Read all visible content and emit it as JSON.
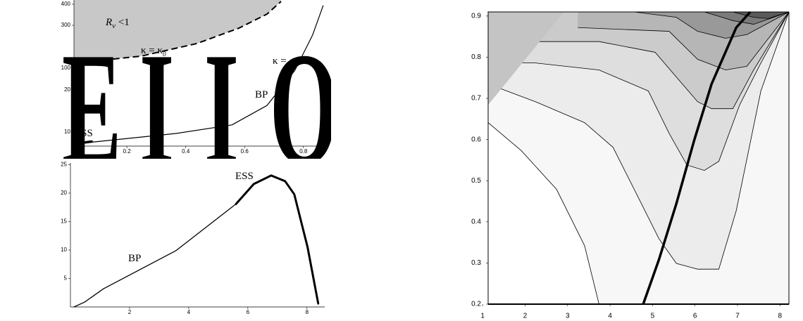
{
  "chart_data": [
    {
      "type": "line",
      "xlim": [
        0.02,
        0.87
      ],
      "ylim": [
        6,
        420
      ],
      "yscale": "piecewise",
      "xticks": [
        0.2,
        0.4,
        0.6,
        0.8
      ],
      "yticks": [
        10,
        20,
        100,
        300,
        400
      ],
      "region": {
        "x": [
          0.02,
          0.248,
          0.438,
          0.581,
          0.676,
          0.724
        ],
        "y": [
          123,
          156,
          215,
          287,
          353,
          413
        ],
        "color": "#c8c8c8",
        "dashed": true
      },
      "series": [
        {
          "color": "#000000",
          "width": 1.2,
          "x": [
            0.02,
            0.367,
            0.557,
            0.676,
            0.771,
            0.831,
            0.867
          ],
          "y": [
            6.6,
            9.6,
            11.7,
            16.3,
            92,
            254,
            393
          ]
        },
        {
          "color": "#000000",
          "width": 3.5,
          "x": [
            0.02,
            0.08
          ],
          "y": [
            6.6,
            7.3
          ]
        }
      ],
      "region_label": [
        "R",
        "v",
        " <1"
      ],
      "curve_label": [
        "κ = κ",
        "0"
      ],
      "cut_label": "κ =",
      "annotations": [
        "BP",
        "ESS"
      ],
      "overlay": [
        "E",
        "I",
        "I",
        "O"
      ]
    },
    {
      "type": "line",
      "xlim": [
        0,
        8.6
      ],
      "ylim": [
        0,
        25.3
      ],
      "xticks": [
        2,
        4,
        6,
        8
      ],
      "yticks": [
        5,
        10,
        15,
        20,
        25
      ],
      "series": [
        {
          "name": "BP",
          "color": "#000000",
          "width": 1.3,
          "x": [
            0.12,
            0.48,
            1.12,
            3.57,
            5.6
          ],
          "y": [
            0,
            0.86,
            3.2,
            9.9,
            18.1
          ]
        },
        {
          "name": "ESS",
          "color": "#000000",
          "width": 3,
          "x": [
            5.6,
            6.2,
            6.79,
            7.26,
            7.57,
            8.02,
            8.38
          ],
          "y": [
            18.1,
            21.6,
            23.1,
            22.1,
            19.8,
            10.5,
            0.6
          ]
        }
      ]
    },
    {
      "type": "contour",
      "xlim": [
        1.13,
        8.21
      ],
      "ylim": [
        0.2,
        0.91
      ],
      "xticks": [
        1,
        2,
        3,
        4,
        5,
        6,
        7,
        8
      ],
      "yticks": [
        0.2,
        0.3,
        0.4,
        0.5,
        0.6,
        0.7,
        0.8,
        0.9
      ],
      "background": "#f7f7f7",
      "contours": [
        {
          "fill": "#ffffff",
          "fill_below": true,
          "x": [
            1.13,
            1.91,
            2.74,
            3.4,
            3.74
          ],
          "y": [
            0.641,
            0.573,
            0.479,
            0.342,
            0.2
          ]
        },
        {
          "fill": "#ececec",
          "x": [
            1.13,
            2.24,
            3.4,
            4.07,
            4.65,
            5.15,
            5.56,
            6.06,
            6.56,
            6.97,
            7.55,
            8.21
          ],
          "y": [
            0.735,
            0.692,
            0.641,
            0.581,
            0.462,
            0.359,
            0.299,
            0.285,
            0.285,
            0.427,
            0.718,
            0.91
          ]
        },
        {
          "fill": "#dedede",
          "x": [
            1.13,
            2.24,
            3.74,
            4.9,
            5.39,
            5.81,
            6.22,
            6.56,
            7.05,
            7.55,
            8.21
          ],
          "y": [
            0.786,
            0.786,
            0.769,
            0.718,
            0.615,
            0.538,
            0.525,
            0.547,
            0.684,
            0.786,
            0.91
          ]
        },
        {
          "fill": "#cbcbcb",
          "x": [
            1.13,
            3.74,
            5.06,
            5.56,
            6.06,
            6.39,
            6.89,
            7.38,
            8.21
          ],
          "y": [
            0.838,
            0.838,
            0.812,
            0.752,
            0.692,
            0.675,
            0.675,
            0.769,
            0.91
          ]
        },
        {
          "fill": "#b6b6b6",
          "x": [
            3.24,
            5.39,
            6.06,
            6.72,
            7.22,
            8.21
          ],
          "y": [
            0.872,
            0.863,
            0.795,
            0.769,
            0.778,
            0.91
          ]
        },
        {
          "fill": "#999999",
          "x": [
            4.57,
            5.56,
            6.06,
            6.72,
            7.22,
            8.21
          ],
          "y": [
            0.91,
            0.897,
            0.863,
            0.846,
            0.855,
            0.91
          ]
        },
        {
          "fill": "#7a7a7a",
          "x": [
            6.22,
            6.89,
            7.38,
            8.21
          ],
          "y": [
            0.91,
            0.889,
            0.88,
            0.91
          ]
        },
        {
          "fill": "#5a5a5a",
          "x": [
            6.89,
            7.38,
            7.72,
            8.21
          ],
          "y": [
            0.91,
            0.897,
            0.894,
            0.91
          ]
        }
      ],
      "region": {
        "x": [
          1.13,
          2.91,
          1.13
        ],
        "y": [
          0.91,
          0.91,
          0.684
        ],
        "color": "#c4c4c4"
      },
      "series": [
        {
          "color": "#000000",
          "width": 3.5,
          "x": [
            4.78,
            5.15,
            5.56,
            5.98,
            6.39,
            6.97,
            7.3
          ],
          "y": [
            0.2,
            0.308,
            0.444,
            0.598,
            0.735,
            0.872,
            0.91
          ]
        }
      ]
    }
  ]
}
